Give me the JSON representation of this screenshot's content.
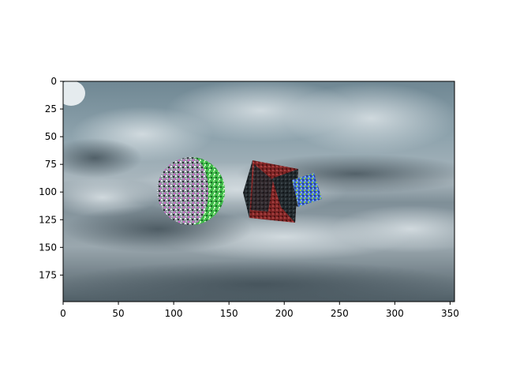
{
  "figure": {
    "image_description_colors": {
      "sky_dark": "#4f5f68",
      "sky_mid": "#7f95a0",
      "sky_light": "#c9d3d8",
      "sphere_gray": "#8a8f98",
      "sphere_green": "#3fcf4a",
      "cube_red": "#8e2a2a",
      "cube_dark": "#1c2226",
      "cube_blue": "#3f6ed0",
      "cube_green": "#7fbf3f"
    },
    "x_axis": {
      "ticks": [
        0,
        50,
        100,
        150,
        200,
        250,
        300,
        350
      ],
      "tick_labels": [
        "0",
        "50",
        "100",
        "150",
        "200",
        "250",
        "300",
        "350"
      ],
      "range": [
        0,
        354
      ]
    },
    "y_axis": {
      "ticks": [
        0,
        25,
        50,
        75,
        100,
        125,
        150,
        175
      ],
      "tick_labels": [
        "0",
        "25",
        "50",
        "75",
        "100",
        "125",
        "150",
        "175"
      ],
      "range": [
        0,
        199
      ],
      "inverted": true
    }
  }
}
